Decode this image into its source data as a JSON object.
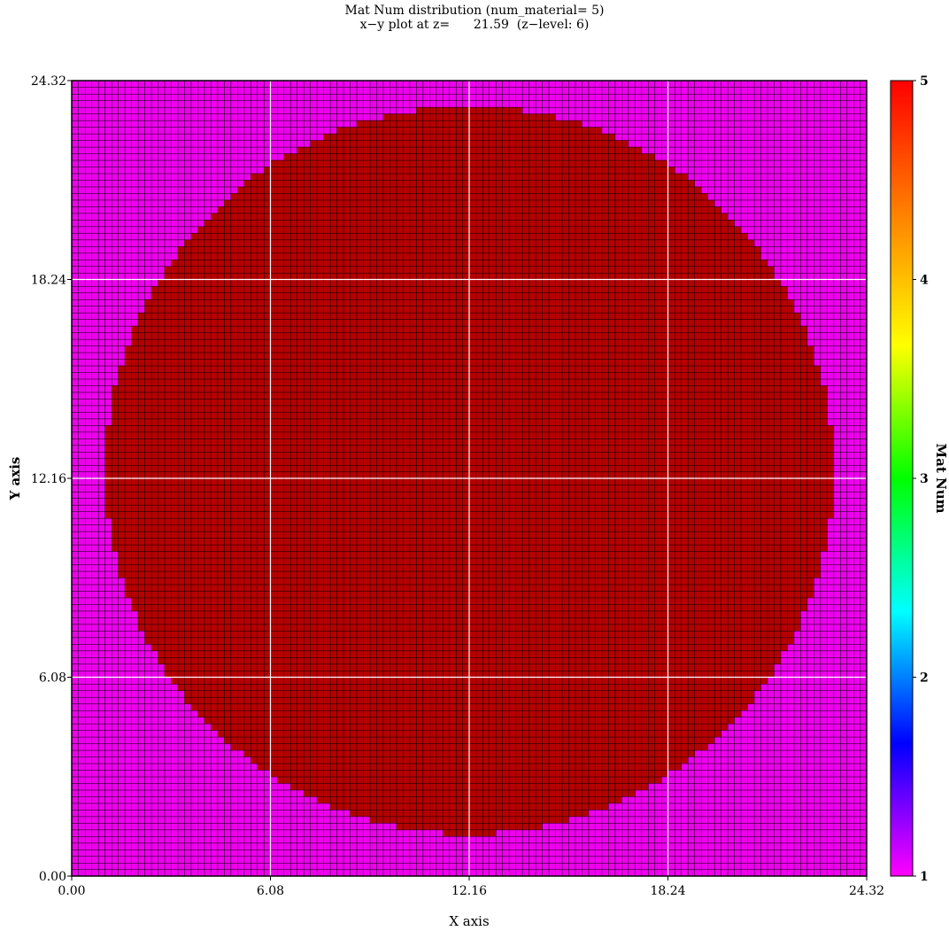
{
  "chart_data": {
    "type": "heatmap",
    "title": "Mat Num distribution (num_material= 5)",
    "subtitle": "x−y plot at z=      21.59  (z−level: 6)",
    "xlabel": "X axis",
    "ylabel": "Y axis",
    "xlim": [
      0.0,
      24.32
    ],
    "ylim": [
      0.0,
      24.32
    ],
    "x_ticks": [
      "0.00",
      "6.08",
      "12.16",
      "18.24",
      "24.32"
    ],
    "y_ticks": [
      "0.00",
      "6.08",
      "12.16",
      "18.24",
      "24.32"
    ],
    "grid": true,
    "cells_per_axis": 120,
    "background_material": 1,
    "region": {
      "shape": "circle",
      "material": 5,
      "center": [
        12.16,
        12.41
      ],
      "radius": 11.13
    },
    "colorbar": {
      "label": "Mat Num",
      "min": 1,
      "max": 5,
      "ticks": [
        "1",
        "2",
        "3",
        "4",
        "5"
      ],
      "colors": [
        "#ff00ff",
        "#0000ff",
        "#00ffff",
        "#00ff00",
        "#ffff00",
        "#ff8000",
        "#ff0000"
      ]
    },
    "colors": {
      "material_1": "#ee00ee",
      "material_5": "#b60000",
      "cell_line": "#000000",
      "grid_line": "#ffffff"
    }
  }
}
